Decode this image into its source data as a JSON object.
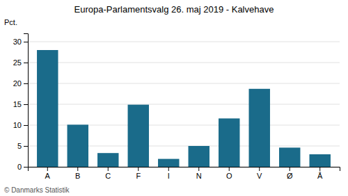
{
  "chart_data": {
    "type": "bar",
    "title": "Europa-Parlamentsvalg 26. maj 2019 - Kalvehave",
    "ylabel": "Pct.",
    "footer": "© Danmarks Statistik",
    "categories": [
      "A",
      "B",
      "C",
      "F",
      "I",
      "N",
      "O",
      "V",
      "Ø",
      "Å"
    ],
    "values": [
      28.0,
      10.1,
      3.3,
      14.9,
      1.9,
      5.0,
      11.6,
      18.7,
      4.6,
      3.0
    ],
    "color": "#1a6b8a",
    "ylim": [
      0,
      32
    ],
    "yticks": [
      0,
      5,
      10,
      15,
      20,
      25,
      30
    ],
    "grid": true
  }
}
